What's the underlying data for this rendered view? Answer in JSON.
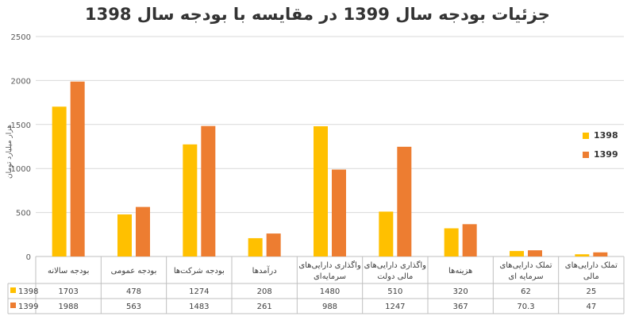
{
  "chart_data": {
    "type": "bar",
    "title": "جزئیات بودجه سال 1399 در مقایسه با بودجه سال 1398",
    "ylabel": "هزار میلیارد تومان",
    "ylim": [
      0,
      2500
    ],
    "yticks": [
      0,
      500,
      1000,
      1500,
      2000,
      2500
    ],
    "grid": true,
    "legend_position": "right",
    "categories": [
      "بودجه سالانه",
      "بودجه عمومی",
      "بودجه شرکت‌ها",
      "درآمدها",
      "واگذاری دارایی‌های سرمایه‌ای",
      "واگذاری دارایی‌های مالی دولت",
      "هزینه‌ها",
      "تملک دارایی‌های سرمایه ای",
      "تملک دارایی‌های مالی"
    ],
    "series": [
      {
        "name": "1398",
        "color": "#FFC000",
        "values": [
          "1703",
          "478",
          "1274",
          "208",
          "1480",
          "510",
          "320",
          "62",
          "25"
        ]
      },
      {
        "name": "1399",
        "color": "#ED7D31",
        "values": [
          "1988",
          "563",
          "1483",
          "261",
          "988",
          "1247",
          "367",
          "70.3",
          "47"
        ]
      }
    ]
  }
}
